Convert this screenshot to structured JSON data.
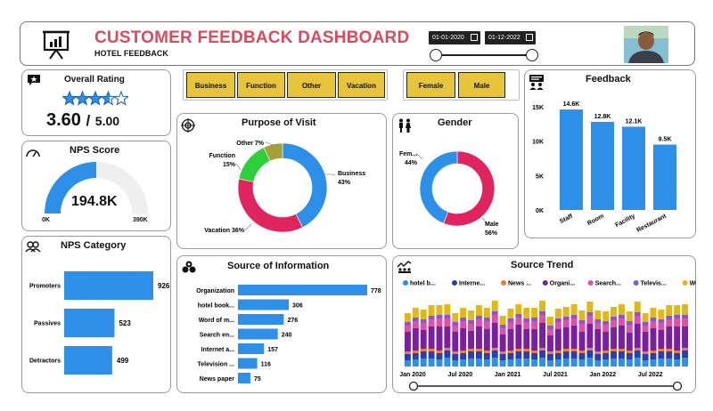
{
  "header": {
    "title": "CUSTOMER FEEDBACK DASHBOARD",
    "subtitle": "HOTEL FEEDBACK",
    "date_start": "01-01-2020",
    "date_end": "01-12-2022"
  },
  "filters": {
    "purpose": [
      "Business",
      "Function",
      "Other",
      "Vacation"
    ],
    "gender": [
      "Female",
      "Male"
    ]
  },
  "rating": {
    "title": "Overall Rating",
    "value": "3.60",
    "separator": "/",
    "max": "5.00",
    "stars": 3.6
  },
  "nps": {
    "title": "NPS Score",
    "value": "194.8K",
    "min_label": "0K",
    "max_label": "390K",
    "fraction": 0.5
  },
  "nps_category": {
    "title": "NPS Category",
    "items": [
      {
        "label": "Promoters",
        "value": 926,
        "value_label": "926"
      },
      {
        "label": "Passives",
        "value": 523,
        "value_label": "523"
      },
      {
        "label": "Detractors",
        "value": 499,
        "value_label": "499"
      }
    ]
  },
  "purpose": {
    "title": "Purpose of Visit",
    "slices": [
      {
        "name": "Business",
        "pct": 43,
        "label": "Business",
        "pct_label": "43%",
        "color": "#2e8fe8"
      },
      {
        "name": "Vacation",
        "pct": 36,
        "label": "Vacation 36%",
        "color": "#e0245e"
      },
      {
        "name": "Function",
        "pct": 15,
        "label": "Function",
        "pct_label": "15%",
        "color": "#2dcf3a"
      },
      {
        "name": "Other",
        "pct": 7,
        "label": "Other 7%",
        "color": "#a3a035"
      }
    ]
  },
  "gender": {
    "title": "Gender",
    "slices": [
      {
        "name": "Male",
        "pct": 56,
        "label": "Male",
        "pct_label": "56%",
        "color": "#e0245e"
      },
      {
        "name": "Female",
        "pct": 44,
        "label": "Fem...",
        "pct_label": "44%",
        "color": "#2e8fe8"
      }
    ]
  },
  "feedback": {
    "title": "Feedback",
    "y_ticks": [
      "15K",
      "10K",
      "5K",
      "0K"
    ],
    "bars": [
      {
        "label": "Staff",
        "value": 14.6,
        "value_label": "14.6K"
      },
      {
        "label": "Room",
        "value": 12.8,
        "value_label": "12.8K"
      },
      {
        "label": "Facility",
        "value": 12.1,
        "value_label": "12.1K"
      },
      {
        "label": "Restaurant",
        "value": 9.5,
        "value_label": "9.5K"
      }
    ],
    "ymax": 15
  },
  "source_info": {
    "title": "Source of Information",
    "items": [
      {
        "label": "Organization",
        "value": 778,
        "value_label": "778"
      },
      {
        "label": "hotel book...",
        "value": 306,
        "value_label": "306"
      },
      {
        "label": "Word of m...",
        "value": 276,
        "value_label": "276"
      },
      {
        "label": "Search en...",
        "value": 240,
        "value_label": "240"
      },
      {
        "label": "Internet a...",
        "value": 157,
        "value_label": "157"
      },
      {
        "label": "Television ...",
        "value": 116,
        "value_label": "116"
      },
      {
        "label": "News paper",
        "value": 75,
        "value_label": "75"
      }
    ]
  },
  "trend": {
    "title": "Source Trend",
    "legend": [
      {
        "name": "hotel b...",
        "color": "#2e8fe8"
      },
      {
        "name": "Interne...",
        "color": "#2c3fa8"
      },
      {
        "name": "News ...",
        "color": "#ef7b3a"
      },
      {
        "name": "Organi...",
        "color": "#7a1fa0"
      },
      {
        "name": "Search...",
        "color": "#e04fa8"
      },
      {
        "name": "Televis...",
        "color": "#8a55d0"
      },
      {
        "name": "Word o...",
        "color": "#e0b81a"
      }
    ],
    "x_labels": [
      "Jan 2020",
      "Jul 2020",
      "Jan 2021",
      "Jul 2021",
      "Jan 2022",
      "Jul 2022"
    ]
  },
  "colors": {
    "accent_blue": "#2e8fe8",
    "title_red": "#d94b5b",
    "filter_yellow": "#e7c43c"
  }
}
